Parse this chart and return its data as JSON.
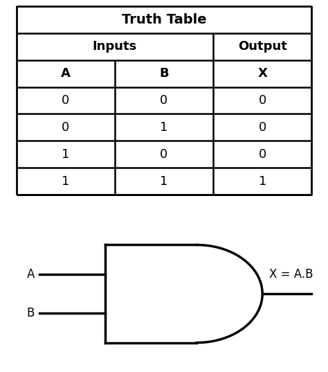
{
  "title": "Truth Table",
  "col_headers": [
    "A",
    "B",
    "X"
  ],
  "rows": [
    [
      "0",
      "0",
      "0"
    ],
    [
      "0",
      "1",
      "0"
    ],
    [
      "1",
      "0",
      "0"
    ],
    [
      "1",
      "1",
      "1"
    ]
  ],
  "gate_label_A": "A",
  "gate_label_B": "B",
  "gate_output_label": "X = A.B",
  "bg_color": "#ffffff",
  "line_color": "#000000",
  "text_color": "#000000",
  "title_fontsize": 14,
  "header_fontsize": 13,
  "cell_fontsize": 13,
  "gate_fontsize": 12
}
